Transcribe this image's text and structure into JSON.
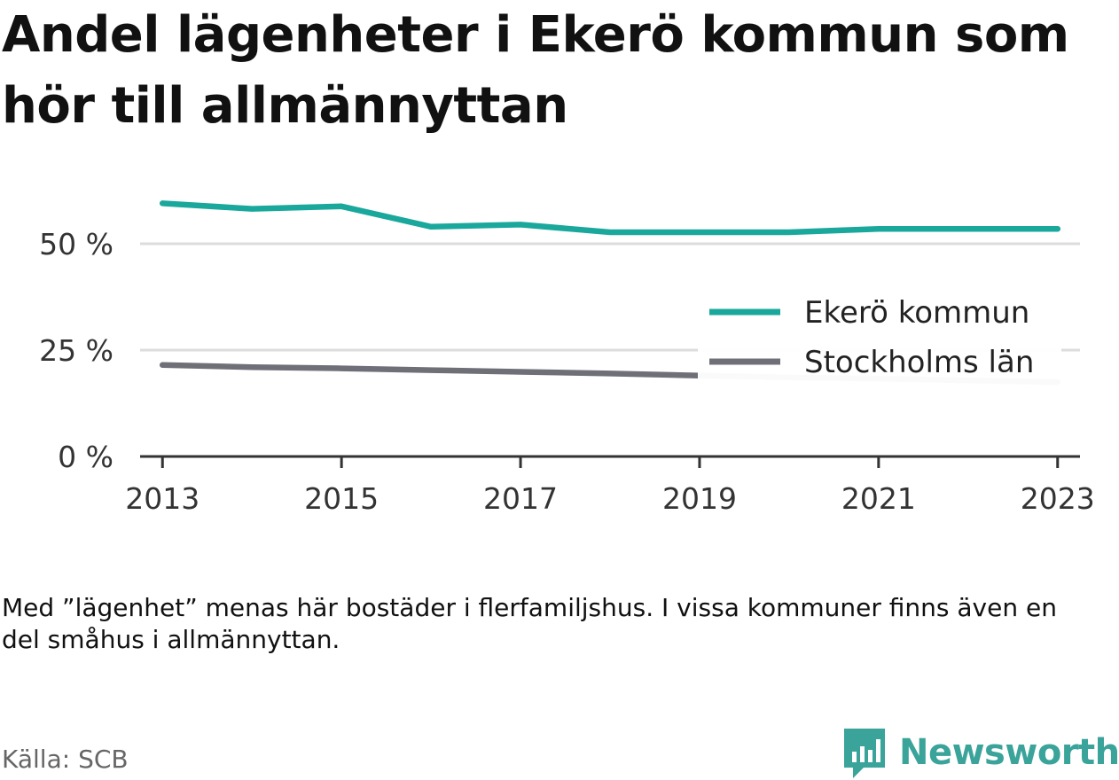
{
  "title": "Andel lägenheter i Ekerö kommun som hör till allmännyttan",
  "note": "Med ”lägenhet” menas här bostäder i flerfamiljshus. I vissa kommuner finns även en del småhus i allmännyttan.",
  "source": "Källa: SCB",
  "brand": "Newsworthy",
  "colors": {
    "ekero": "#1aa89c",
    "stockholm": "#6f6f78",
    "brand": "#3aa39a"
  },
  "chart_data": {
    "type": "line",
    "x": [
      2013,
      2014,
      2015,
      2016,
      2017,
      2018,
      2019,
      2020,
      2021,
      2022,
      2023
    ],
    "series": [
      {
        "name": "Ekerö kommun",
        "color": "#1aa89c",
        "values": [
          59.5,
          58.2,
          58.8,
          54.0,
          54.5,
          52.7,
          52.7,
          52.7,
          53.5,
          53.5,
          53.5
        ]
      },
      {
        "name": "Stockholms län",
        "color": "#6f6f78",
        "values": [
          21.5,
          21.0,
          20.7,
          20.3,
          19.9,
          19.5,
          19.0,
          18.6,
          18.3,
          17.9,
          17.5
        ]
      }
    ],
    "xticks": [
      2013,
      2015,
      2017,
      2019,
      2021,
      2023
    ],
    "xtick_labels": [
      "2013",
      "2015",
      "2017",
      "2019",
      "2021",
      "2023"
    ],
    "yticks": [
      0,
      25,
      50
    ],
    "ytick_labels": [
      "0 %",
      "25 %",
      "50 %"
    ],
    "ylim": [
      0,
      60
    ],
    "xlim": [
      2012.75,
      2023.25
    ],
    "grid": true,
    "legend_position": "right"
  }
}
